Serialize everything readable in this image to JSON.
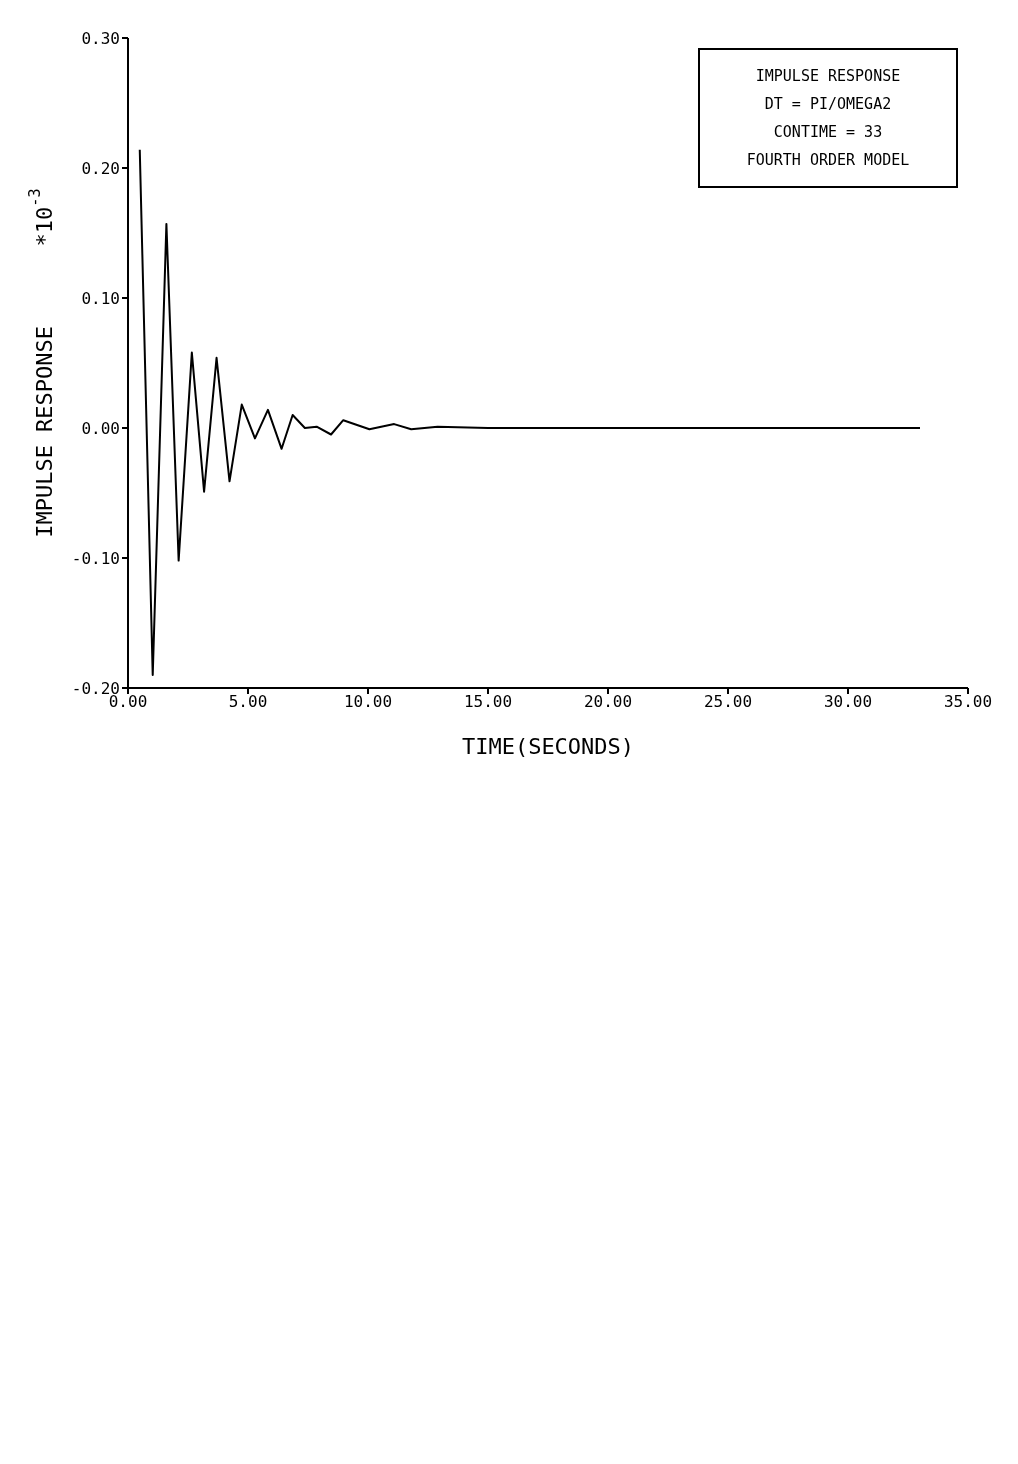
{
  "chart_data": {
    "type": "line",
    "xlabel": "TIME(SECONDS)",
    "ylabel": "IMPULSE RESPONSE      *10$^{-3}$",
    "annotations": [
      "IMPULSE RESPONSE",
      "DT = PI/OMEGA2",
      "CONTIME = 33",
      "FOURTH ORDER MODEL"
    ],
    "x": [
      0.49,
      1.03,
      1.6,
      2.11,
      2.66,
      3.17,
      3.69,
      4.23,
      4.74,
      5.29,
      5.83,
      6.4,
      6.86,
      7.37,
      7.86,
      8.46,
      8.97,
      10.06,
      11.09,
      11.8,
      12.9,
      15,
      20,
      25,
      30,
      33
    ],
    "series": [
      {
        "color": "#000000",
        "values": [
          0.214,
          -0.19,
          0.157,
          -0.102,
          0.058,
          -0.049,
          0.054,
          -0.041,
          0.018,
          -0.008,
          0.014,
          -0.016,
          0.01,
          0,
          0.001,
          -0.005,
          0.006,
          -0.001,
          0.003,
          -0.001,
          0.001,
          0,
          0,
          0,
          0,
          0
        ]
      }
    ],
    "xlim": [
      0,
      35
    ],
    "xticks": [
      {
        "value": 0,
        "label": "0.00"
      },
      {
        "value": 5,
        "label": "5.00"
      },
      {
        "value": 10,
        "label": "10.00"
      },
      {
        "value": 15,
        "label": "15.00"
      },
      {
        "value": 20,
        "label": "20.00"
      },
      {
        "value": 25,
        "label": "25.00"
      },
      {
        "value": 30,
        "label": "30.00"
      },
      {
        "value": 35,
        "label": "35.00"
      }
    ],
    "ylim": [
      -0.2,
      0.3
    ],
    "yticks": [
      {
        "value": -0.2,
        "label": "-0.20"
      },
      {
        "value": -0.1,
        "label": "-0.10"
      },
      {
        "value": 0,
        "label": "0.00"
      },
      {
        "value": 0.1,
        "label": "0.10"
      },
      {
        "value": 0.2,
        "label": "0.20"
      },
      {
        "value": 0.3,
        "label": "0.30"
      }
    ],
    "marker": "none",
    "line_style": "solid"
  }
}
